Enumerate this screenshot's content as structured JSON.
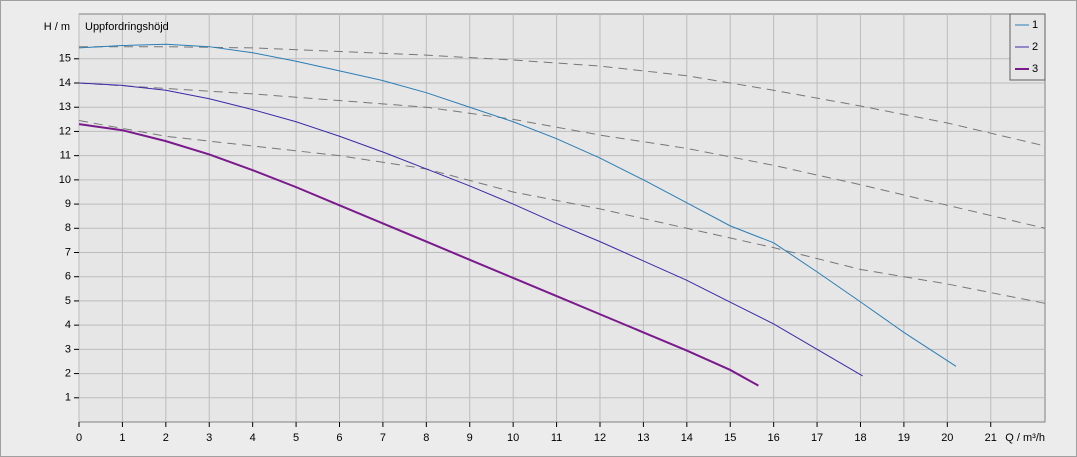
{
  "chart_data": {
    "type": "line",
    "title": "Uppfordringshöjd",
    "x_label": "Q / m³/h",
    "y_label": "H / m",
    "xlim": [
      0,
      22.25
    ],
    "ylim": [
      0,
      16.85
    ],
    "xticks": [
      0,
      1,
      2,
      3,
      4,
      5,
      6,
      7,
      8,
      9,
      10,
      11,
      12,
      13,
      14,
      15,
      16,
      17,
      18,
      19,
      20,
      21
    ],
    "yticks": [
      1,
      2,
      3,
      4,
      5,
      6,
      7,
      8,
      9,
      10,
      11,
      12,
      13,
      14,
      15
    ],
    "grid": true,
    "legend": "top-right",
    "series": [
      {
        "name": "1",
        "color": "#2a7db5",
        "width": 1,
        "x": [
          0,
          1,
          2,
          3,
          4,
          5,
          6,
          7,
          8,
          9,
          10,
          11,
          12,
          13,
          14,
          15,
          16,
          17,
          18,
          19,
          20.2
        ],
        "values": [
          15.45,
          15.55,
          15.6,
          15.5,
          15.25,
          14.9,
          14.5,
          14.1,
          13.6,
          13.0,
          12.4,
          11.7,
          10.9,
          10.0,
          9.05,
          8.1,
          7.4,
          6.2,
          4.96,
          3.7,
          2.3
        ]
      },
      {
        "name": "2",
        "color": "#3a2aa8",
        "width": 1,
        "x": [
          0,
          1,
          2,
          3,
          4,
          5,
          6,
          7,
          8,
          9,
          10,
          11,
          12,
          13,
          14,
          15,
          16,
          17,
          18.05
        ],
        "values": [
          14.0,
          13.9,
          13.7,
          13.35,
          12.9,
          12.4,
          11.8,
          11.15,
          10.45,
          9.75,
          9.0,
          8.2,
          7.45,
          6.65,
          5.85,
          4.95,
          4.05,
          3.0,
          1.9
        ]
      },
      {
        "name": "3",
        "color": "#7a1a8c",
        "width": 2,
        "x": [
          0,
          1,
          2,
          3,
          4,
          5,
          6,
          7,
          8,
          9,
          10,
          11,
          12,
          13,
          14,
          15,
          15.65
        ],
        "values": [
          12.3,
          12.05,
          11.6,
          11.05,
          10.4,
          9.7,
          8.95,
          8.2,
          7.45,
          6.7,
          5.95,
          5.2,
          4.45,
          3.7,
          2.95,
          2.15,
          1.5
        ]
      }
    ],
    "dashed_series": [
      {
        "color": "#777777",
        "x": [
          0,
          2,
          4,
          6,
          8,
          10,
          12,
          14,
          16,
          18,
          20,
          22.25
        ],
        "values": [
          15.5,
          15.5,
          15.45,
          15.3,
          15.15,
          14.95,
          14.7,
          14.3,
          13.7,
          13.05,
          12.35,
          11.4
        ]
      },
      {
        "color": "#777777",
        "x": [
          0,
          4,
          8,
          10,
          12,
          14,
          16,
          18,
          20,
          22.25
        ],
        "values": [
          14.0,
          13.55,
          13.0,
          12.5,
          11.85,
          11.3,
          10.6,
          9.8,
          8.95,
          8.0
        ]
      },
      {
        "color": "#777777",
        "x": [
          0,
          2,
          4,
          6,
          8,
          10,
          12,
          14,
          16,
          18,
          20,
          22.25
        ],
        "values": [
          12.45,
          11.8,
          11.4,
          11.0,
          10.45,
          9.5,
          8.8,
          8.0,
          7.2,
          6.3,
          5.7,
          4.9
        ]
      }
    ]
  }
}
